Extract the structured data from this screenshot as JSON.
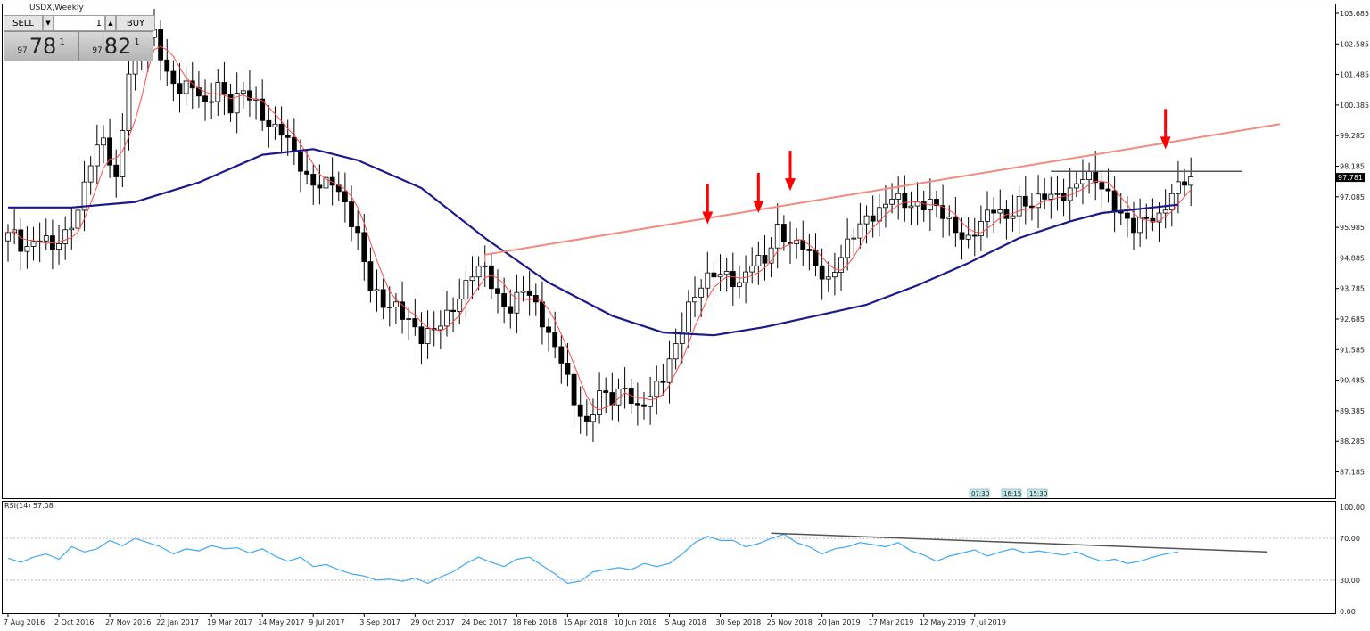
{
  "window": {
    "title": "USDX,Weekly"
  },
  "trade_panel": {
    "sell_label": "SELL",
    "buy_label": "BUY",
    "lot_value": "1",
    "sell_price": {
      "prefix": "97",
      "big": "78",
      "sup": "1"
    },
    "buy_price": {
      "prefix": "97",
      "big": "82",
      "sup": "1"
    }
  },
  "colors": {
    "candle_up": "#ffffff",
    "candle_down": "#000000",
    "sma_fast": "#ff4a4a",
    "sma_slow": "#1a1a8a",
    "trendline": "#f28a7e",
    "resistance": "#555555",
    "arrows": "#ff0000",
    "rsi_line": "#3fa9f5",
    "rsi_trend": "#555555"
  },
  "chart_data": [
    {
      "type": "candlestick",
      "ylim": [
        86.9,
        103.9
      ],
      "y_ticks": [
        "103.685",
        "102.585",
        "101.485",
        "100.385",
        "99.285",
        "98.185",
        "97.085",
        "95.985",
        "94.885",
        "93.785",
        "92.685",
        "91.585",
        "90.485",
        "89.385",
        "88.285",
        "87.185"
      ],
      "x_tick_labels": [
        "7 Aug 2016",
        "2 Oct 2016",
        "27 Nov 2016",
        "22 Jan 2017",
        "19 Mar 2017",
        "14 May 2017",
        "9 Jul 2017",
        "3 Sep 2017",
        "29 Oct 2017",
        "24 Dec 2017",
        "18 Feb 2018",
        "15 Apr 2018",
        "10 Jun 2018",
        "5 Aug 2018",
        "30 Sep 2018",
        "25 Nov 2018",
        "20 Jan 2019",
        "17 Mar 2019",
        "12 May 2019",
        "7 Jul 2019"
      ],
      "current_price_label": "97.781",
      "close_anchors": [
        [
          0,
          95.8
        ],
        [
          3,
          95.3
        ],
        [
          5,
          95.5
        ],
        [
          7,
          95.2
        ],
        [
          9,
          95.9
        ],
        [
          11,
          96.6
        ],
        [
          13,
          98.2
        ],
        [
          15,
          99.2
        ],
        [
          17,
          97.8
        ],
        [
          19,
          101.5
        ],
        [
          21,
          102.3
        ],
        [
          23,
          103.1
        ],
        [
          25,
          101.6
        ],
        [
          27,
          100.8
        ],
        [
          29,
          101.0
        ],
        [
          31,
          100.5
        ],
        [
          33,
          101.2
        ],
        [
          35,
          100.1
        ],
        [
          37,
          100.9
        ],
        [
          39,
          100.6
        ],
        [
          41,
          99.6
        ],
        [
          43,
          99.3
        ],
        [
          45,
          98.7
        ],
        [
          47,
          97.9
        ],
        [
          49,
          97.4
        ],
        [
          51,
          97.5
        ],
        [
          53,
          96.9
        ],
        [
          55,
          95.8
        ],
        [
          57,
          93.7
        ],
        [
          59,
          93.1
        ],
        [
          61,
          93.3
        ],
        [
          63,
          92.7
        ],
        [
          65,
          91.8
        ],
        [
          67,
          92.3
        ],
        [
          69,
          93.0
        ],
        [
          71,
          93.4
        ],
        [
          73,
          94.2
        ],
        [
          75,
          94.6
        ],
        [
          77,
          93.6
        ],
        [
          79,
          92.9
        ],
        [
          81,
          93.7
        ],
        [
          83,
          93.3
        ],
        [
          85,
          92.2
        ],
        [
          87,
          91.1
        ],
        [
          89,
          89.6
        ],
        [
          91,
          89.0
        ],
        [
          93,
          90.1
        ],
        [
          95,
          89.6
        ],
        [
          97,
          90.2
        ],
        [
          99,
          89.6
        ],
        [
          101,
          89.9
        ],
        [
          103,
          90.4
        ],
        [
          105,
          91.8
        ],
        [
          107,
          93.3
        ],
        [
          109,
          93.8
        ],
        [
          111,
          94.2
        ],
        [
          113,
          94.4
        ],
        [
          115,
          94.0
        ],
        [
          117,
          94.6
        ],
        [
          119,
          94.7
        ],
        [
          121,
          96.1
        ],
        [
          123,
          95.4
        ],
        [
          125,
          95.2
        ],
        [
          127,
          94.6
        ],
        [
          129,
          94.2
        ],
        [
          131,
          94.9
        ],
        [
          133,
          95.6
        ],
        [
          135,
          96.4
        ],
        [
          137,
          96.7
        ],
        [
          139,
          97.0
        ],
        [
          141,
          96.7
        ],
        [
          143,
          96.9
        ],
        [
          145,
          97.0
        ],
        [
          147,
          96.3
        ],
        [
          149,
          95.8
        ],
        [
          151,
          95.7
        ],
        [
          153,
          96.2
        ],
        [
          155,
          96.5
        ],
        [
          157,
          96.3
        ],
        [
          159,
          97.1
        ],
        [
          161,
          96.7
        ],
        [
          163,
          97.0
        ],
        [
          165,
          97.2
        ],
        [
          167,
          97.4
        ],
        [
          169,
          97.7
        ],
        [
          171,
          97.6
        ],
        [
          173,
          97.3
        ],
        [
          175,
          96.5
        ],
        [
          177,
          95.8
        ],
        [
          179,
          96.3
        ],
        [
          181,
          96.5
        ],
        [
          183,
          97.2
        ],
        [
          185,
          97.5
        ],
        [
          186,
          97.8
        ]
      ],
      "sma_fast": {
        "period": 5
      },
      "sma_slow": {
        "period": 100,
        "values": [
          [
            0,
            96.7
          ],
          [
            10,
            96.7
          ],
          [
            20,
            96.9
          ],
          [
            30,
            97.6
          ],
          [
            40,
            98.6
          ],
          [
            48,
            98.8
          ],
          [
            55,
            98.4
          ],
          [
            65,
            97.4
          ],
          [
            75,
            95.6
          ],
          [
            85,
            94.0
          ],
          [
            95,
            92.8
          ],
          [
            103,
            92.2
          ],
          [
            111,
            92.1
          ],
          [
            119,
            92.4
          ],
          [
            127,
            92.8
          ],
          [
            135,
            93.2
          ],
          [
            143,
            93.9
          ],
          [
            151,
            94.7
          ],
          [
            159,
            95.6
          ],
          [
            167,
            96.2
          ],
          [
            172,
            96.5
          ],
          [
            180,
            96.7
          ],
          [
            184,
            96.8
          ]
        ]
      },
      "trendline": {
        "from": [
          75,
          95.0
        ],
        "to": [
          200,
          99.7
        ]
      },
      "resistance": {
        "from": [
          164,
          98.0
        ],
        "to": [
          194,
          98.0
        ]
      },
      "arrows": [
        [
          110,
          96.1
        ],
        [
          118,
          96.5
        ],
        [
          123,
          97.3
        ],
        [
          182,
          98.8
        ]
      ],
      "time_markers": [
        "07:30",
        "16:15",
        "15:30"
      ]
    },
    {
      "type": "line",
      "title": "RSI(14) 57.08",
      "ylim": [
        0,
        100
      ],
      "y_ticks": [
        "100.00",
        "70.00",
        "30.00",
        "0.00"
      ],
      "levels": [
        70,
        30
      ],
      "values": [
        [
          0,
          51
        ],
        [
          2,
          47
        ],
        [
          4,
          52
        ],
        [
          6,
          55
        ],
        [
          8,
          50
        ],
        [
          10,
          62
        ],
        [
          12,
          57
        ],
        [
          14,
          60
        ],
        [
          16,
          68
        ],
        [
          18,
          63
        ],
        [
          20,
          70
        ],
        [
          22,
          66
        ],
        [
          24,
          62
        ],
        [
          26,
          55
        ],
        [
          28,
          60
        ],
        [
          30,
          58
        ],
        [
          32,
          63
        ],
        [
          34,
          60
        ],
        [
          36,
          61
        ],
        [
          38,
          56
        ],
        [
          40,
          60
        ],
        [
          42,
          53
        ],
        [
          44,
          48
        ],
        [
          46,
          52
        ],
        [
          48,
          43
        ],
        [
          50,
          45
        ],
        [
          52,
          40
        ],
        [
          54,
          36
        ],
        [
          56,
          34
        ],
        [
          58,
          30
        ],
        [
          60,
          31
        ],
        [
          62,
          29
        ],
        [
          64,
          32
        ],
        [
          66,
          27
        ],
        [
          68,
          33
        ],
        [
          70,
          38
        ],
        [
          72,
          46
        ],
        [
          74,
          52
        ],
        [
          76,
          47
        ],
        [
          78,
          43
        ],
        [
          80,
          50
        ],
        [
          82,
          52
        ],
        [
          84,
          44
        ],
        [
          86,
          36
        ],
        [
          88,
          27
        ],
        [
          90,
          29
        ],
        [
          92,
          38
        ],
        [
          94,
          40
        ],
        [
          96,
          42
        ],
        [
          98,
          40
        ],
        [
          100,
          46
        ],
        [
          102,
          43
        ],
        [
          104,
          46
        ],
        [
          106,
          55
        ],
        [
          108,
          66
        ],
        [
          110,
          72
        ],
        [
          112,
          68
        ],
        [
          114,
          68
        ],
        [
          116,
          62
        ],
        [
          118,
          65
        ],
        [
          120,
          70
        ],
        [
          122,
          74
        ],
        [
          124,
          66
        ],
        [
          126,
          62
        ],
        [
          128,
          55
        ],
        [
          130,
          60
        ],
        [
          132,
          62
        ],
        [
          134,
          66
        ],
        [
          136,
          64
        ],
        [
          138,
          62
        ],
        [
          140,
          66
        ],
        [
          142,
          58
        ],
        [
          144,
          54
        ],
        [
          146,
          48
        ],
        [
          148,
          53
        ],
        [
          150,
          56
        ],
        [
          152,
          59
        ],
        [
          154,
          53
        ],
        [
          156,
          57
        ],
        [
          158,
          60
        ],
        [
          160,
          56
        ],
        [
          162,
          58
        ],
        [
          164,
          56
        ],
        [
          166,
          54
        ],
        [
          168,
          57
        ],
        [
          170,
          52
        ],
        [
          172,
          48
        ],
        [
          174,
          50
        ],
        [
          176,
          46
        ],
        [
          178,
          48
        ],
        [
          180,
          52
        ],
        [
          182,
          55
        ],
        [
          184,
          57
        ]
      ],
      "trend": {
        "from": [
          120,
          75
        ],
        "to": [
          198,
          57
        ]
      }
    }
  ]
}
